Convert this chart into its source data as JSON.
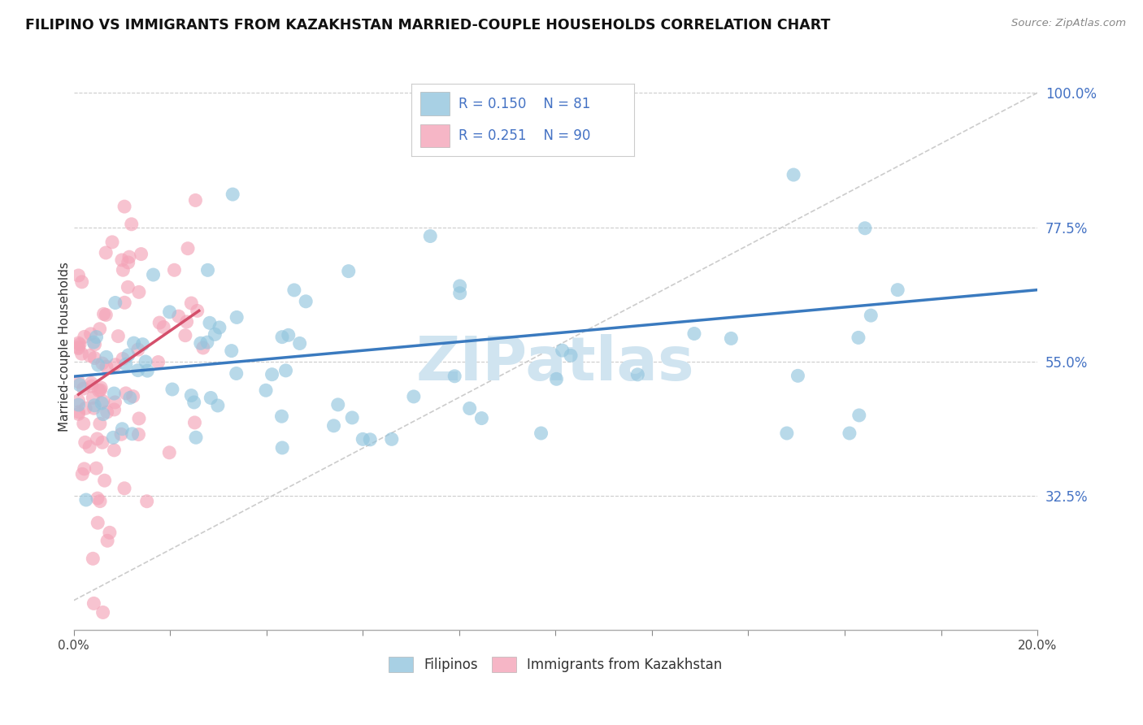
{
  "title": "FILIPINO VS IMMIGRANTS FROM KAZAKHSTAN MARRIED-COUPLE HOUSEHOLDS CORRELATION CHART",
  "source": "Source: ZipAtlas.com",
  "ylabel": "Married-couple Households",
  "x_min": 0.0,
  "x_max": 0.2,
  "y_min": 0.1,
  "y_max": 1.05,
  "y_tick_right": [
    1.0,
    0.775,
    0.55,
    0.325
  ],
  "y_tick_right_labels": [
    "100.0%",
    "77.5%",
    "55.0%",
    "32.5%"
  ],
  "blue_color": "#92c5de",
  "pink_color": "#f4a4b8",
  "blue_line_color": "#3a7abf",
  "pink_line_color": "#d44f6b",
  "diag_line_color": "#cccccc",
  "watermark_color": "#d0e4f0",
  "R_blue": 0.15,
  "N_blue": 81,
  "R_pink": 0.251,
  "N_pink": 90,
  "legend_label_blue": "Filipinos",
  "legend_label_pink": "Immigrants from Kazakhstan",
  "blue_trend_x": [
    0.0,
    0.2
  ],
  "blue_trend_y": [
    0.525,
    0.67
  ],
  "pink_trend_x": [
    0.001,
    0.026
  ],
  "pink_trend_y": [
    0.495,
    0.635
  ]
}
